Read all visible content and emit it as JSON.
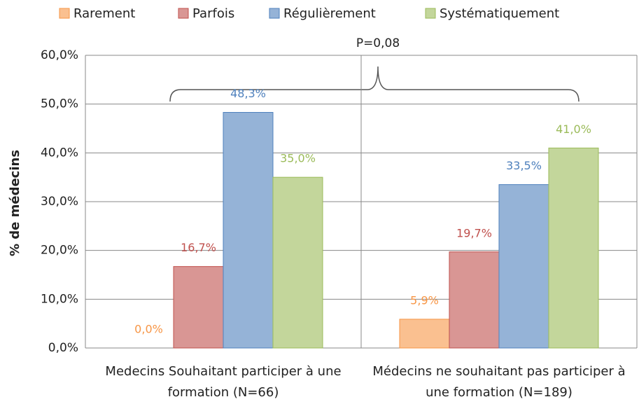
{
  "chart_data": {
    "type": "bar",
    "y_label": "% de médecins",
    "annotation": "P=0,08",
    "categories": [
      "Medecins Souhaitant participer à une formation (N=66)",
      "Médecins ne souhaitant pas participer à une formation (N=189)"
    ],
    "series": [
      {
        "name": "Rarement",
        "color": "#fac090",
        "edge_color": "#f79646",
        "values": [
          0,
          5.9
        ],
        "value_labels": [
          "0,0%",
          "5,9%"
        ]
      },
      {
        "name": "Parfois",
        "color": "#d99694",
        "edge_color": "#c0504d",
        "values": [
          16.7,
          19.7
        ],
        "value_labels": [
          "16,7%",
          "19,7%"
        ]
      },
      {
        "name": "Régulièrement",
        "color": "#95b3d7",
        "edge_color": "#4f81bd",
        "values": [
          48.3,
          33.5
        ],
        "value_labels": [
          "48,3%",
          "33,5%"
        ]
      },
      {
        "name": "Systématiquement",
        "color": "#c3d69b",
        "edge_color": "#9bbb59",
        "values": [
          35.0,
          41.0
        ],
        "value_labels": [
          "35,0%",
          "41,0%"
        ]
      }
    ],
    "ylim": [
      0,
      60
    ],
    "yticks": [
      {
        "value": 0,
        "label": "0,0%"
      },
      {
        "value": 10,
        "label": "10,0%"
      },
      {
        "value": 20,
        "label": "20,0%"
      },
      {
        "value": 30,
        "label": "30,0%"
      },
      {
        "value": 40,
        "label": "40,0%"
      },
      {
        "value": 50,
        "label": "50,0%"
      },
      {
        "value": 60,
        "label": "60,0%"
      }
    ],
    "grid": true
  }
}
